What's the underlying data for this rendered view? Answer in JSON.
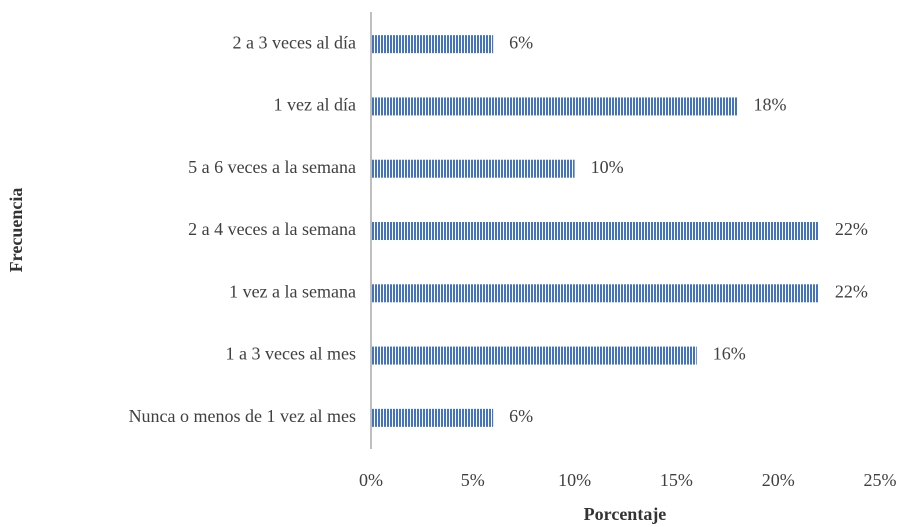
{
  "chart_data": {
    "type": "bar",
    "orientation": "horizontal",
    "xlabel": "Porcentaje",
    "ylabel": "Frecuencia",
    "categories": [
      "2 a 3 veces al día",
      "1 vez al día",
      "5 a 6 veces a la semana",
      "2 a 4 veces a la semana",
      "1 vez a la semana",
      "1 a 3 veces al mes",
      "Nunca o menos de 1 vez al mes"
    ],
    "values": [
      6,
      18,
      10,
      22,
      22,
      16,
      6
    ],
    "value_labels": [
      "6%",
      "18%",
      "10%",
      "22%",
      "22%",
      "16%",
      "6%"
    ],
    "color": "#4472c4",
    "xlim": [
      0,
      25
    ],
    "xticks": [
      {
        "value": 0,
        "label": "0%"
      },
      {
        "value": 5,
        "label": "5%"
      },
      {
        "value": 10,
        "label": "10%"
      },
      {
        "value": 15,
        "label": "15%"
      },
      {
        "value": 20,
        "label": "20%"
      },
      {
        "value": 25,
        "label": "25%"
      }
    ]
  }
}
